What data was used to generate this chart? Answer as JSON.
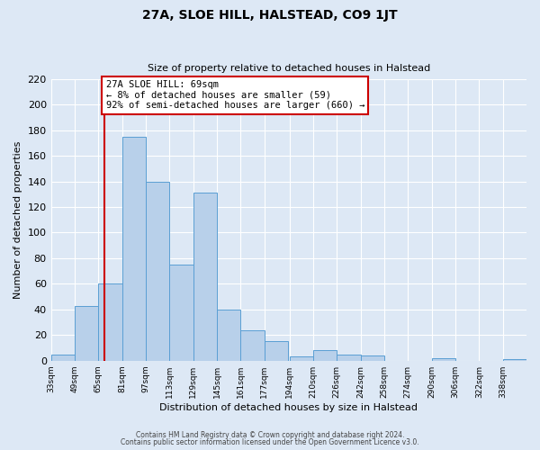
{
  "title": "27A, SLOE HILL, HALSTEAD, CO9 1JT",
  "subtitle": "Size of property relative to detached houses in Halstead",
  "xlabel": "Distribution of detached houses by size in Halstead",
  "ylabel": "Number of detached properties",
  "footer_line1": "Contains HM Land Registry data © Crown copyright and database right 2024.",
  "footer_line2": "Contains public sector information licensed under the Open Government Licence v3.0.",
  "bin_edges": [
    33,
    49,
    65,
    81,
    97,
    113,
    129,
    145,
    161,
    177,
    194,
    210,
    226,
    242,
    258,
    274,
    290,
    306,
    322,
    338,
    354
  ],
  "bar_heights": [
    5,
    43,
    60,
    175,
    140,
    75,
    131,
    40,
    24,
    15,
    3,
    8,
    5,
    4,
    0,
    0,
    2,
    0,
    0,
    1
  ],
  "bar_color": "#b8d0ea",
  "bar_edge_color": "#5a9fd4",
  "vline_color": "#cc0000",
  "vline_x": 69,
  "annotation_title": "27A SLOE HILL: 69sqm",
  "annotation_line1": "← 8% of detached houses are smaller (59)",
  "annotation_line2": "92% of semi-detached houses are larger (660) →",
  "annotation_box_facecolor": "#ffffff",
  "annotation_box_edgecolor": "#cc0000",
  "ylim": [
    0,
    220
  ],
  "yticks": [
    0,
    20,
    40,
    60,
    80,
    100,
    120,
    140,
    160,
    180,
    200,
    220
  ],
  "background_color": "#dde8f5",
  "plot_background_color": "#dde8f5",
  "grid_color": "#ffffff",
  "title_fontsize": 10,
  "subtitle_fontsize": 8,
  "ylabel_fontsize": 8,
  "xlabel_fontsize": 8,
  "ytick_fontsize": 8,
  "xtick_fontsize": 6.5,
  "footer_fontsize": 5.5,
  "ann_fontsize": 7.5
}
